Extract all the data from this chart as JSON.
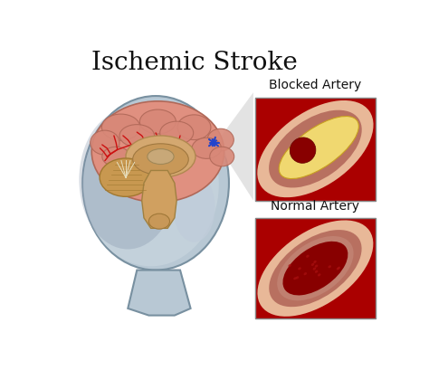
{
  "title": "Ischemic Stroke",
  "title_fontsize": 20,
  "bg_color": "#ffffff",
  "label_blocked": "Blocked Artery",
  "label_normal": "Normal Artery",
  "label_fontsize": 10,
  "head_color_light": "#c8d4dc",
  "head_color_dark": "#8898a8",
  "brain_color": "#e8a088",
  "brain_dark": "#c07060",
  "brainstem_color": "#d4a86a",
  "cerebellum_color": "#c49855",
  "box_bg": "#f0c8a8",
  "artery_red": "#aa0000",
  "artery_red2": "#cc1111",
  "artery_skin": "#e8b898",
  "artery_wall": "#c07878",
  "plaque_yellow": "#f0d878",
  "blood_dark": "#880000",
  "star_blue": "#2244cc"
}
